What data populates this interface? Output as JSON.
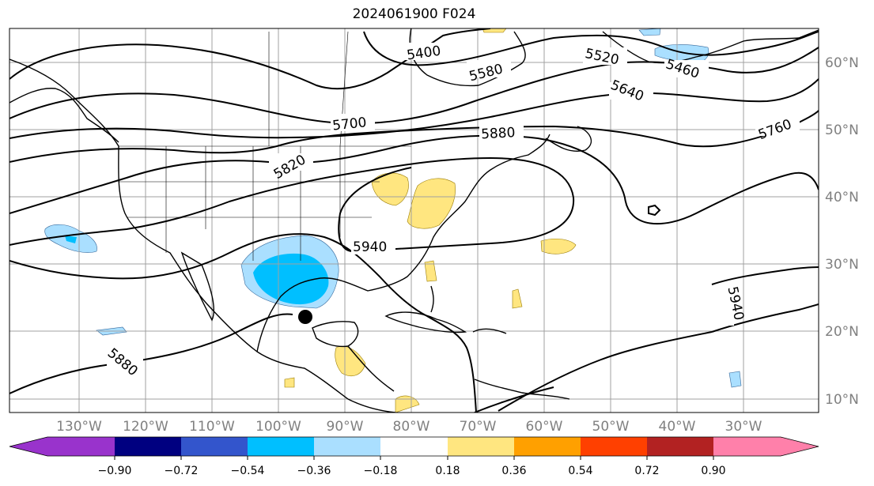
{
  "title": "2024061900 F024",
  "map": {
    "lon_labels": [
      "130°W",
      "120°W",
      "110°W",
      "100°W",
      "90°W",
      "80°W",
      "70°W",
      "60°W",
      "50°W",
      "40°W",
      "30°W"
    ],
    "lat_labels": [
      "60°N",
      "50°N",
      "40°N",
      "30°N",
      "20°N",
      "10°N"
    ],
    "contour_labels": [
      "5400",
      "5520",
      "5460",
      "5580",
      "5640",
      "5700",
      "5760",
      "5880",
      "5820",
      "5940",
      "5940",
      "5880"
    ],
    "colors": {
      "contour": "#000000",
      "grid": "#a0a0a0",
      "coast": "#000000",
      "land": "#ffffff"
    }
  },
  "colorbar": {
    "colors": [
      "#9933cc",
      "#000080",
      "#3355cc",
      "#00bfff",
      "#aadfff",
      "#ffffff",
      "#ffe680",
      "#ffa000",
      "#ff4000",
      "#b22222",
      "#ff80aa"
    ],
    "tick_labels": [
      "−0.90",
      "−0.72",
      "−0.54",
      "−0.36",
      "−0.18",
      "0.18",
      "0.36",
      "0.54",
      "0.72",
      "0.90"
    ]
  }
}
